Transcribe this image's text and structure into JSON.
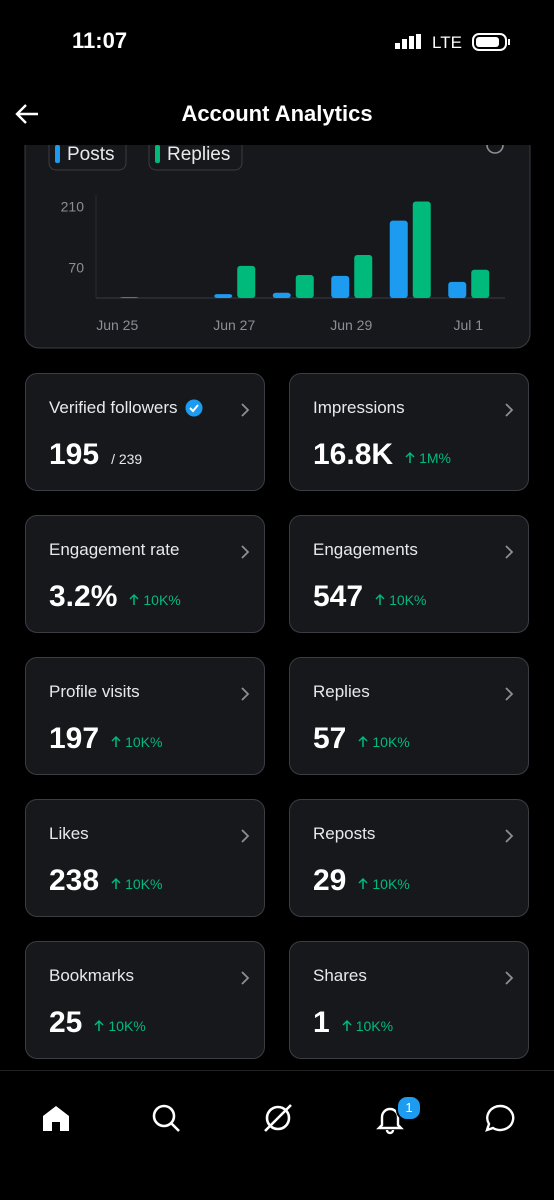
{
  "status_bar": {
    "time": "11:07",
    "network": "LTE"
  },
  "header": {
    "title": "Account Analytics"
  },
  "chart_data": {
    "type": "bar",
    "categories": [
      "Jun 25",
      null,
      "Jun 27",
      null,
      "Jun 29",
      null,
      "Jul 1"
    ],
    "series": [
      {
        "name": "Posts",
        "color": "#1d9bf0",
        "values": [
          0,
          0,
          9,
          12,
          51,
          178,
          37
        ]
      },
      {
        "name": "Replies",
        "color": "#00ba7c",
        "values": [
          2,
          0,
          74,
          53,
          99,
          222,
          65
        ]
      }
    ],
    "ylim": [
      0,
      230
    ],
    "yticks": [
      70,
      210
    ],
    "grid": false
  },
  "cards": [
    {
      "label": "Verified followers",
      "value": "195",
      "total": "/ 239"
    },
    {
      "label": "Impressions",
      "value": "16.8K",
      "change": "1M%"
    },
    {
      "label": "Engagement rate",
      "value": "3.2%",
      "change": "10K%"
    },
    {
      "label": "Engagements",
      "value": "547",
      "change": "10K%"
    },
    {
      "label": "Profile visits",
      "value": "197",
      "change": "10K%"
    },
    {
      "label": "Replies",
      "value": "57",
      "change": "10K%"
    },
    {
      "label": "Likes",
      "value": "238",
      "change": "10K%"
    },
    {
      "label": "Reposts",
      "value": "29",
      "change": "10K%"
    },
    {
      "label": "Bookmarks",
      "value": "25",
      "change": "10K%"
    },
    {
      "label": "Shares",
      "value": "1",
      "change": "10K%"
    }
  ],
  "nav": {
    "notification_count": "1"
  }
}
